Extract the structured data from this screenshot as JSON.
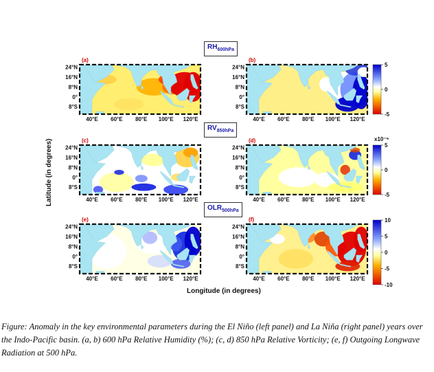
{
  "figure": {
    "rows": [
      {
        "header_main": "RH",
        "header_sub": "600hPa",
        "colorbar": {
          "ticks": [
            "5",
            "0",
            "-5"
          ],
          "exponent": ""
        }
      },
      {
        "header_main": "RV",
        "header_sub": "850hPa",
        "colorbar": {
          "ticks": [
            "5",
            "0",
            "-5"
          ],
          "exponent": "x10⁻⁶"
        }
      },
      {
        "header_main": "OLR",
        "header_sub": "500hPa",
        "colorbar": {
          "ticks": [
            "10",
            "5",
            "0",
            "-5",
            "-10"
          ],
          "exponent": ""
        }
      }
    ],
    "panels": [
      {
        "label": "(a)",
        "pattern": "rh_elnino"
      },
      {
        "label": "(b)",
        "pattern": "rh_lanina"
      },
      {
        "label": "(c)",
        "pattern": "rv_elnino"
      },
      {
        "label": "(d)",
        "pattern": "rv_lanina"
      },
      {
        "label": "(e)",
        "pattern": "olr_elnino"
      },
      {
        "label": "(f)",
        "pattern": "olr_lanina"
      }
    ],
    "lat_ticks": [
      "24°N",
      "16°N",
      "8°N",
      "0°",
      "8°S"
    ],
    "lon_ticks": [
      "40°E",
      "60°E",
      "80°E",
      "100°E",
      "120°E"
    ],
    "ylabel": "Latitude (in degrees)",
    "xlabel": "Longitude (in degrees)",
    "colors": {
      "positive": "#0000cc",
      "negative": "#e00000",
      "neutral": "#ffffd0",
      "land": "#a8e4f2",
      "header_text": "#1a1aa8"
    }
  },
  "caption": "Figure: Anomaly in the key environmental parameters during the El Niño (left panel) and La Niña (right panel) years over the Indo-Pacific basin. (a, b) 600 hPa Relative Humidity (%); (c, d) 850 hPa Relative Vorticity; (e, f) Outgoing Longwave Radiation at 500 hPa."
}
